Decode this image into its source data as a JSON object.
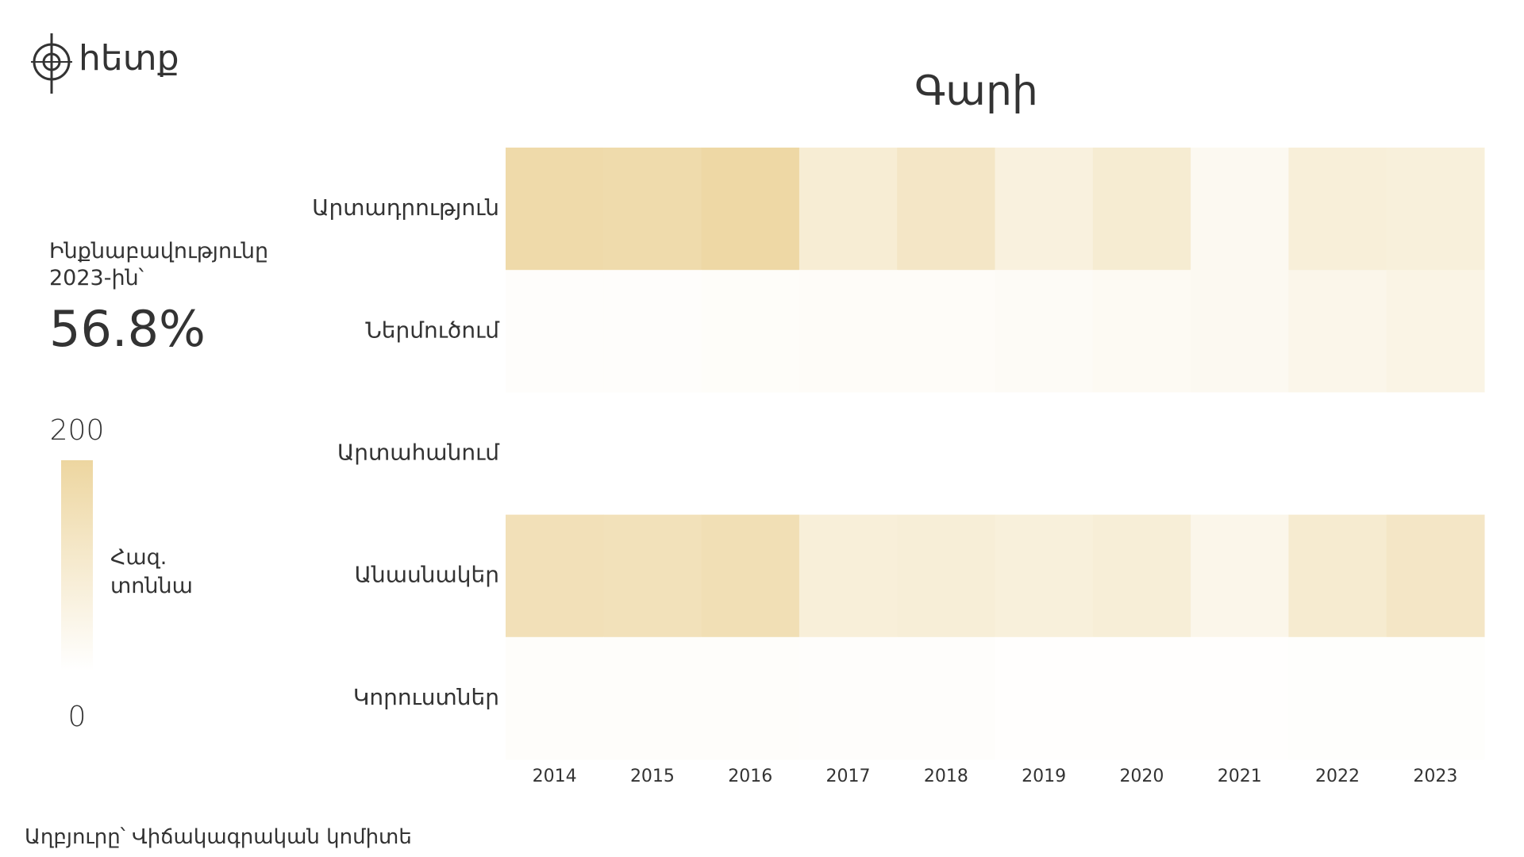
{
  "logo": "հետք",
  "chart_data": {
    "type": "heatmap",
    "title": "Գարի",
    "categories": [
      "2014",
      "2015",
      "2016",
      "2017",
      "2018",
      "2019",
      "2020",
      "2021",
      "2022",
      "2023"
    ],
    "rows": [
      "Արտադրություն",
      "Ներմուծում",
      "Արտահանում",
      "Անասնակեր",
      "Կորուստներ"
    ],
    "z": [
      [
        180,
        175,
        190,
        90,
        120,
        70,
        95,
        30,
        80,
        75
      ],
      [
        8,
        8,
        12,
        15,
        15,
        20,
        25,
        30,
        45,
        55
      ],
      [
        0,
        0,
        0,
        0,
        0,
        0,
        0,
        0,
        0,
        0
      ],
      [
        150,
        145,
        155,
        80,
        85,
        75,
        85,
        45,
        100,
        120
      ],
      [
        10,
        10,
        10,
        8,
        8,
        5,
        5,
        4,
        6,
        7
      ]
    ],
    "colorscale": [
      "#ffffff",
      "#edd6a0"
    ],
    "zlim": [
      0,
      200
    ],
    "zticks": [
      0,
      200
    ],
    "colorbar_label": "Հազ. տոննա"
  },
  "side": {
    "label": "Ինքնաբավությունը 2023-ին՝",
    "value": "56.8%"
  },
  "source": "Աղբյուրը՝ Վիճակագրական կոմիտե"
}
